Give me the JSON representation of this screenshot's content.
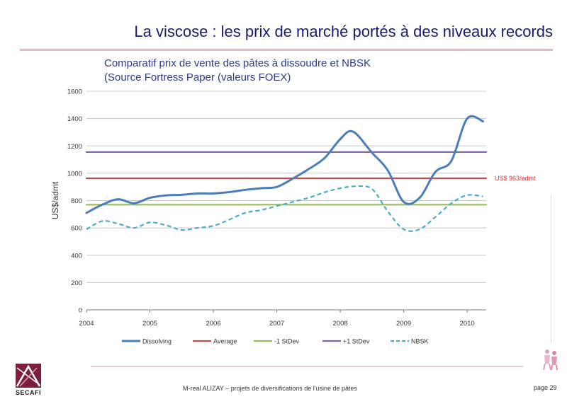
{
  "slide": {
    "title": "La viscose : les prix de marché portés à des niveaux records",
    "chart_title_line1": "Comparatif prix de vente des pâtes à dissoudre et NBSK",
    "chart_title_line2": "(Source Fortress Paper (valeurs FOEX)",
    "footer": "M-real ALIZAY – projets de diversifications de l'usine de pâtes",
    "page": "page 29",
    "logo_text": "SECAFI"
  },
  "colors": {
    "dissolving": "#4a7ebb",
    "average": "#c0504d",
    "minus_stdev": "#9bbb59",
    "plus_stdev": "#8064a2",
    "nbsk": "#4bacc6",
    "annotation": "#e03030"
  },
  "chart_data": {
    "type": "line",
    "title": "Comparatif prix de vente des pâtes à dissoudre et NBSK (Source Fortress Paper (valeurs FOEX)",
    "xlabel": "",
    "ylabel": "US$/admt",
    "xlim": [
      2004,
      2010.3
    ],
    "ylim": [
      0,
      1600
    ],
    "yticks": [
      0,
      200,
      400,
      600,
      800,
      1000,
      1200,
      1400,
      1600
    ],
    "xticks": [
      2004,
      2005,
      2006,
      2007,
      2008,
      2009,
      2010
    ],
    "grid": true,
    "legend_position": "bottom",
    "annotation": {
      "text": "US$ 963/admt",
      "value": 963
    },
    "series": [
      {
        "name": "Dissolving",
        "key": "dissolving",
        "style": "solid",
        "points": [
          [
            2004,
            710
          ],
          [
            2004.25,
            770
          ],
          [
            2004.5,
            810
          ],
          [
            2004.75,
            780
          ],
          [
            2005,
            820
          ],
          [
            2005.25,
            838
          ],
          [
            2005.5,
            842
          ],
          [
            2005.75,
            852
          ],
          [
            2006,
            852
          ],
          [
            2006.25,
            862
          ],
          [
            2006.5,
            878
          ],
          [
            2006.75,
            890
          ],
          [
            2007,
            900
          ],
          [
            2007.25,
            960
          ],
          [
            2007.5,
            1030
          ],
          [
            2007.75,
            1110
          ],
          [
            2008,
            1250
          ],
          [
            2008.2,
            1305
          ],
          [
            2008.5,
            1150
          ],
          [
            2008.75,
            1020
          ],
          [
            2009,
            790
          ],
          [
            2009.25,
            820
          ],
          [
            2009.5,
            1010
          ],
          [
            2009.75,
            1090
          ],
          [
            2010,
            1400
          ],
          [
            2010.25,
            1380
          ]
        ]
      },
      {
        "name": "Average",
        "key": "average",
        "style": "solid",
        "points": [
          [
            2004,
            963
          ],
          [
            2010.3,
            963
          ]
        ]
      },
      {
        "name": "-1 StDev",
        "key": "minus_stdev",
        "style": "solid",
        "points": [
          [
            2004,
            770
          ],
          [
            2010.3,
            770
          ]
        ]
      },
      {
        "name": "+1 StDev",
        "key": "plus_stdev",
        "style": "solid",
        "points": [
          [
            2004,
            1155
          ],
          [
            2010.3,
            1155
          ]
        ]
      },
      {
        "name": "NBSK",
        "key": "nbsk",
        "style": "dashed",
        "points": [
          [
            2004,
            590
          ],
          [
            2004.25,
            650
          ],
          [
            2004.5,
            630
          ],
          [
            2004.75,
            600
          ],
          [
            2005,
            640
          ],
          [
            2005.25,
            620
          ],
          [
            2005.5,
            585
          ],
          [
            2005.75,
            600
          ],
          [
            2006,
            615
          ],
          [
            2006.25,
            660
          ],
          [
            2006.5,
            710
          ],
          [
            2006.75,
            730
          ],
          [
            2007,
            760
          ],
          [
            2007.25,
            790
          ],
          [
            2007.5,
            820
          ],
          [
            2007.75,
            860
          ],
          [
            2008,
            890
          ],
          [
            2008.25,
            905
          ],
          [
            2008.5,
            885
          ],
          [
            2008.75,
            720
          ],
          [
            2009,
            590
          ],
          [
            2009.25,
            590
          ],
          [
            2009.5,
            680
          ],
          [
            2009.75,
            780
          ],
          [
            2010,
            840
          ],
          [
            2010.25,
            830
          ]
        ]
      }
    ]
  }
}
